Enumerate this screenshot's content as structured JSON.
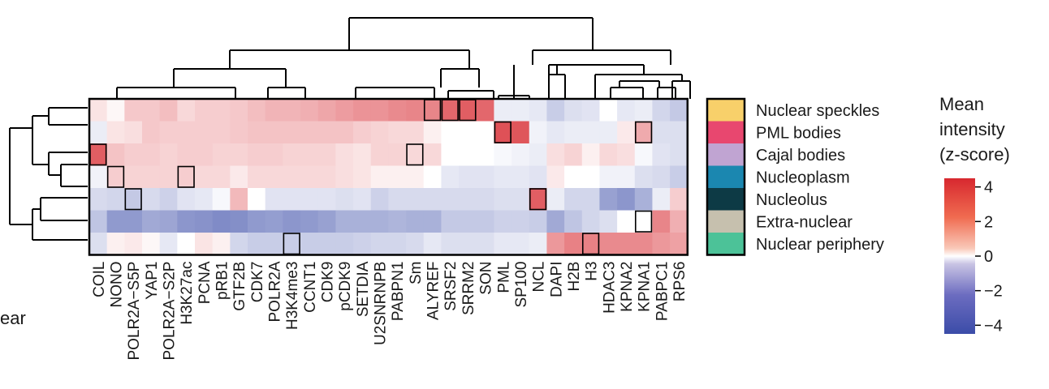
{
  "chart_data": {
    "type": "heatmap",
    "title": "",
    "columns": [
      "COIL",
      "NONO",
      "POLR2A−S5P",
      "YAP1",
      "POLR2A−S2P",
      "H3K27ac",
      "PCNA",
      "pRB1",
      "GTF2B",
      "CDK7",
      "POLR2A",
      "H3K4me3",
      "CCNT1",
      "CDK9",
      "pCDK9",
      "SETDIA",
      "U2SNRNPB",
      "PABPN1",
      "Sm",
      "ALYREF",
      "SRSF2",
      "SRRM2",
      "SON",
      "PML",
      "SP100",
      "NCL",
      "DAPI",
      "H2B",
      "H3",
      "HDAC3",
      "KPNA2",
      "KPNA1",
      "PABPC1",
      "RPS6"
    ],
    "rows": [
      "Nuclear speckles",
      "PML bodies",
      "Cajal bodies",
      "Nucleoplasm",
      "Nucleolus",
      "Extra-nuclear",
      "Nuclear periphery"
    ],
    "row_colors": [
      "#f8d06a",
      "#e8476f",
      "#c0a4d2",
      "#1b87b0",
      "#0d3a45",
      "#c6c0ae",
      "#4cc298"
    ],
    "left_partial_label": "ear",
    "values": [
      [
        0.4,
        0.1,
        0.9,
        0.9,
        1.1,
        0.6,
        0.8,
        0.8,
        0.9,
        1.1,
        1.3,
        1.3,
        1.4,
        1.6,
        1.8,
        2.0,
        2.0,
        2.2,
        2.3,
        2.3,
        3.0,
        3.2,
        3.0,
        -0.3,
        -0.3,
        -0.4,
        -1.0,
        -0.6,
        -0.5,
        0.0,
        -0.4,
        -0.3,
        -0.8,
        -1.1
      ],
      [
        -0.3,
        0.4,
        0.5,
        0.9,
        0.8,
        0.8,
        0.8,
        0.8,
        0.9,
        1.0,
        1.0,
        1.0,
        1.0,
        1.0,
        1.0,
        0.8,
        0.7,
        0.6,
        0.6,
        0.2,
        0.0,
        0.0,
        0.0,
        3.5,
        3.4,
        -0.2,
        -0.4,
        -0.3,
        -0.3,
        -0.3,
        0.3,
        1.5,
        -0.6,
        -0.6
      ],
      [
        3.2,
        1.0,
        0.8,
        0.8,
        0.7,
        0.8,
        0.8,
        0.7,
        0.7,
        0.8,
        0.8,
        0.7,
        0.7,
        0.7,
        0.5,
        0.4,
        0.7,
        0.7,
        0.6,
        0.6,
        0.0,
        0.0,
        0.0,
        -0.1,
        -0.2,
        -0.3,
        0.5,
        0.7,
        0.2,
        0.6,
        0.5,
        -0.1,
        -0.5,
        -0.6
      ],
      [
        -0.2,
        0.8,
        0.7,
        0.7,
        0.7,
        0.8,
        0.6,
        0.6,
        0.3,
        0.6,
        0.6,
        0.6,
        0.6,
        0.6,
        0.5,
        0.4,
        0.2,
        0.2,
        0.2,
        0.0,
        -0.4,
        -0.5,
        -0.5,
        -0.4,
        -0.4,
        -0.5,
        0.3,
        0.0,
        0.0,
        -0.2,
        -0.2,
        -0.6,
        -0.7,
        -1.0
      ],
      [
        -0.7,
        -0.8,
        -1.1,
        -0.7,
        -0.9,
        -0.5,
        -0.4,
        -0.1,
        1.2,
        0.0,
        -0.5,
        -0.5,
        -0.5,
        -0.5,
        -0.6,
        -0.5,
        -0.9,
        -0.7,
        -0.7,
        -0.7,
        -0.7,
        -0.7,
        -0.7,
        -0.6,
        -0.6,
        3.2,
        -0.3,
        -0.8,
        -0.8,
        -2.1,
        -2.4,
        -1.7,
        -0.3,
        0.8
      ],
      [
        -1.2,
        -2.3,
        -2.3,
        -1.9,
        -2.0,
        -2.4,
        -2.5,
        -2.7,
        -2.6,
        -2.3,
        -2.2,
        -2.4,
        -2.3,
        -2.1,
        -1.7,
        -1.7,
        -1.7,
        -1.6,
        -1.7,
        -1.7,
        -1.1,
        -1.1,
        -1.1,
        -0.9,
        -0.9,
        -1.0,
        -1.9,
        -1.2,
        -0.8,
        -0.6,
        0.0,
        0.0,
        2.3,
        1.4
      ],
      [
        -0.6,
        0.2,
        0.3,
        0.1,
        -0.4,
        0.0,
        0.4,
        0.2,
        -0.8,
        -1.0,
        -1.0,
        -1.0,
        -1.0,
        -1.0,
        -1.0,
        -0.9,
        -0.8,
        -0.8,
        -0.7,
        -0.4,
        -0.6,
        -0.6,
        -0.6,
        -0.4,
        -0.4,
        -0.3,
        1.9,
        2.4,
        2.4,
        2.2,
        2.2,
        2.2,
        1.9,
        1.7
      ]
    ],
    "highlighted_cells": [
      [
        0,
        19
      ],
      [
        0,
        20
      ],
      [
        0,
        21
      ],
      [
        1,
        23
      ],
      [
        1,
        31
      ],
      [
        2,
        0
      ],
      [
        2,
        18
      ],
      [
        3,
        1
      ],
      [
        3,
        5
      ],
      [
        4,
        2
      ],
      [
        4,
        25
      ],
      [
        5,
        31
      ],
      [
        6,
        11
      ],
      [
        6,
        28
      ]
    ],
    "colorbar": {
      "title_lines": [
        "Mean",
        "intensity",
        "(z-score)"
      ],
      "ticks": [
        4,
        2,
        0,
        -2,
        -4
      ],
      "tick_labels": [
        "4",
        "2",
        "0",
        "−2",
        "−4"
      ],
      "range": [
        -4.5,
        4.5
      ],
      "low_color": "#3b4ca8",
      "mid_color": "#ffffff",
      "high_color": "#d7282f"
    }
  }
}
